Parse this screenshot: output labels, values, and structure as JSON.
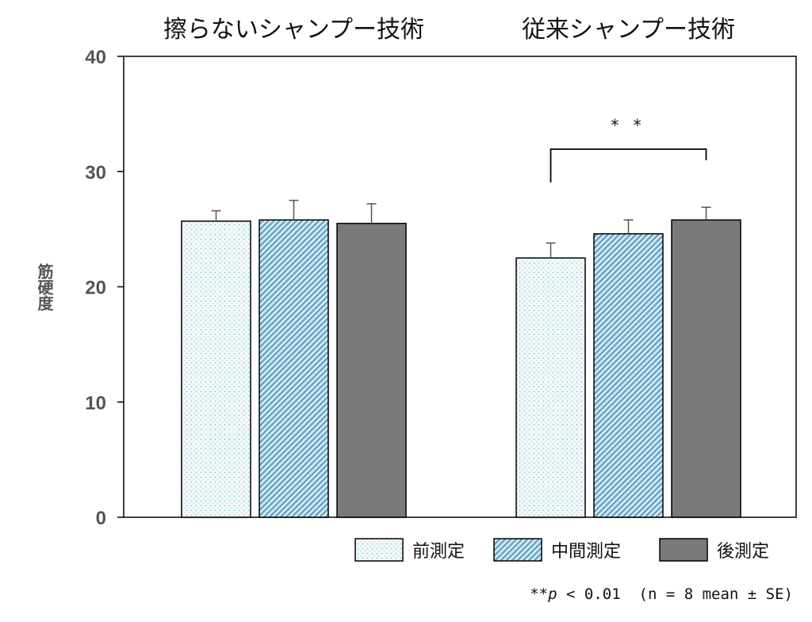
{
  "chart_data": {
    "type": "bar",
    "ylabel": "筋硬度",
    "ylim": [
      0,
      40
    ],
    "yticks": [
      "0",
      "10",
      "20",
      "30",
      "40"
    ],
    "groups": [
      {
        "title": "擦らないシャンプー技術",
        "values": [
          25.7,
          25.8,
          25.5
        ],
        "errors": [
          0.9,
          1.7,
          1.7
        ]
      },
      {
        "title": "従来シャンプー技術",
        "values": [
          22.5,
          24.6,
          25.8
        ],
        "errors": [
          1.3,
          1.2,
          1.1
        ]
      }
    ],
    "series": [
      {
        "name": "前測定",
        "pattern": "dots",
        "color": "#d9ecf0"
      },
      {
        "name": "中間測定",
        "pattern": "diagonal",
        "color": "#a8cfe0"
      },
      {
        "name": "後測定",
        "pattern": "solid",
        "color": "#7a7a7a"
      }
    ],
    "significance": {
      "group_index": 1,
      "from_series": 0,
      "to_series": 2,
      "label": "* *"
    }
  },
  "note": {
    "prefix": "**",
    "p": "p",
    "suffix": " < 0.01  (n = 8 mean ± SE)"
  }
}
